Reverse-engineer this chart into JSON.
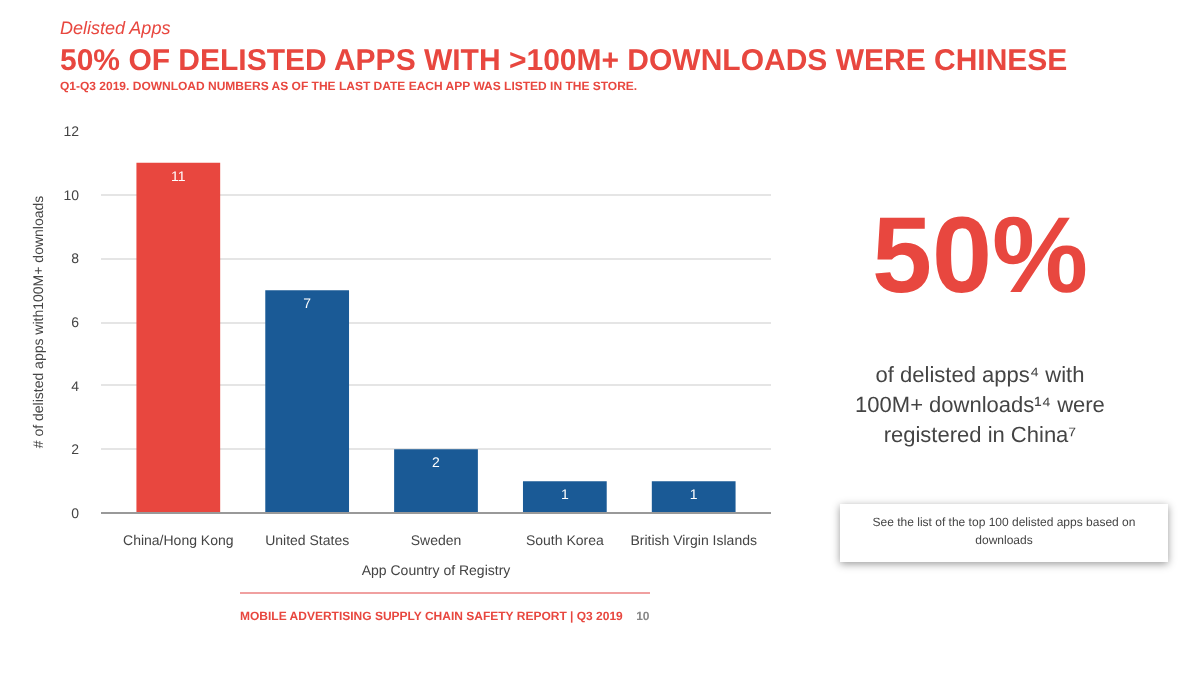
{
  "chart_data": {
    "type": "bar",
    "title": "50% OF DELISTED APPS WITH >100M+ DOWNLOADS WERE CHINESE",
    "subtitle": "Q1-Q3 2019. DOWNLOAD NUMBERS AS OF THE LAST DATE EACH APP WAS LISTED IN THE STORE.",
    "xlabel": "App Country of Registry",
    "ylabel": "# of delisted apps with100M+ downloads",
    "categories": [
      "China/Hong Kong",
      "United States",
      "Sweden",
      "South Korea",
      "British Virgin Islands"
    ],
    "values": [
      11,
      7,
      2,
      1,
      1
    ],
    "colors": [
      "#e8473f",
      "#1a5a96",
      "#1a5a96",
      "#1a5a96",
      "#1a5a96"
    ],
    "ylim": [
      0,
      12
    ],
    "yticks": [
      0,
      2,
      4,
      6,
      8,
      10,
      12
    ],
    "grid": "y",
    "data_labels": true,
    "annotations": [
      "Delisted Apps",
      "50%",
      "of delisted apps⁴ with 100M+ downloads¹⁴ were registered in China⁷",
      "See the list of the top 100 delisted apps based on downloads",
      "MOBILE ADVERTISING SUPPLY CHAIN SAFETY REPORT | Q3 2019",
      "10"
    ]
  }
}
